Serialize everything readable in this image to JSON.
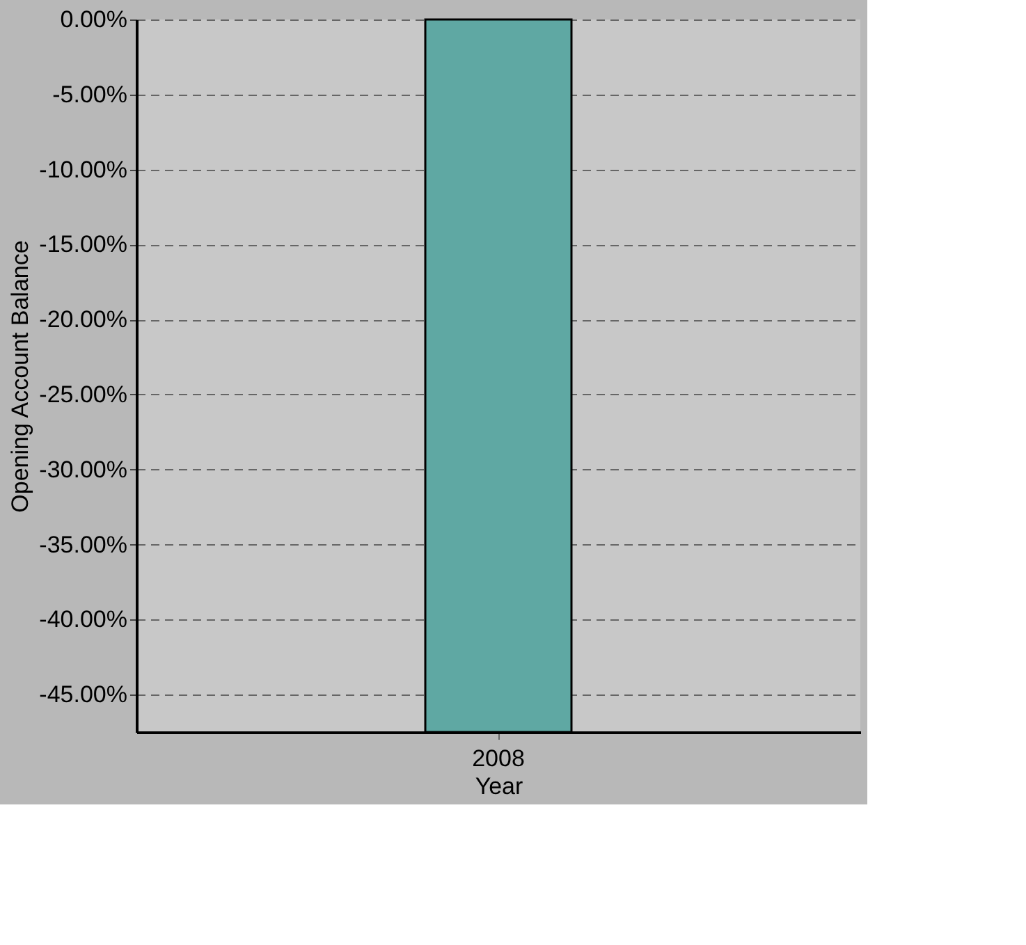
{
  "chart_data": {
    "type": "bar",
    "xlabel": "Year",
    "ylabel": "Opening Account Balance",
    "categories": [
      "2008"
    ],
    "values": [
      -47.5
    ],
    "color": "#5fa8a3",
    "ylim": [
      -47.5,
      0
    ],
    "yticks": [
      {
        "value": 0,
        "label": "0.00%"
      },
      {
        "value": -5,
        "label": "-5.00%"
      },
      {
        "value": -10,
        "label": "-10.00%"
      },
      {
        "value": -15,
        "label": "-15.00%"
      },
      {
        "value": -20,
        "label": "-20.00%"
      },
      {
        "value": -25,
        "label": "-25.00%"
      },
      {
        "value": -30,
        "label": "-30.00%"
      },
      {
        "value": -35,
        "label": "-35.00%"
      },
      {
        "value": -40,
        "label": "-40.00%"
      },
      {
        "value": -45,
        "label": "-45.00%"
      }
    ],
    "grid": "y"
  }
}
